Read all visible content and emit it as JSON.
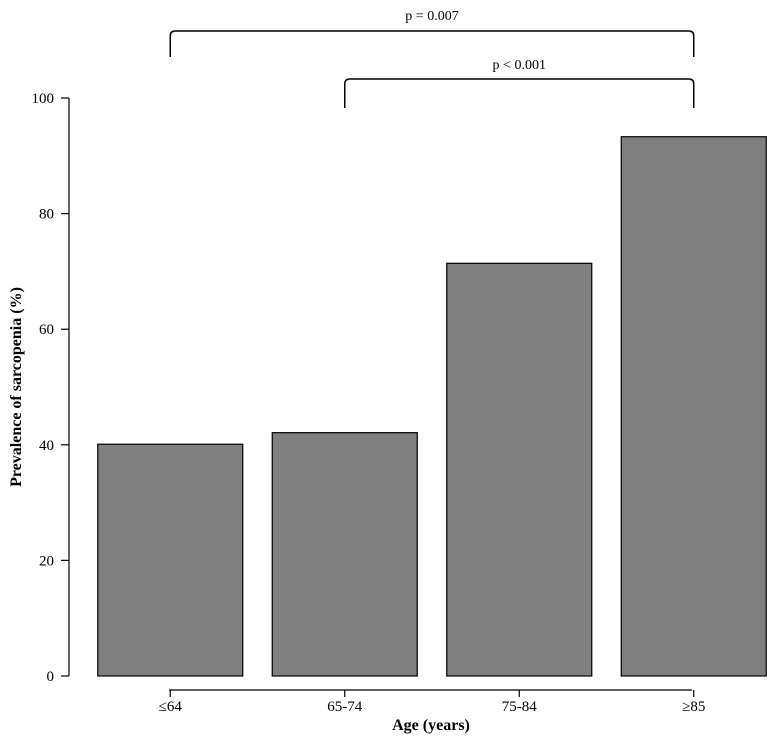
{
  "chart_data": {
    "type": "bar",
    "categories": [
      "≤64",
      "65-74",
      "75-84",
      "≥85"
    ],
    "values": [
      40.1,
      42.1,
      71.4,
      93.3
    ],
    "xlabel": "Age (years)",
    "ylabel": "Prevalence of sarcopenia (%)",
    "ylim": [
      0,
      100
    ],
    "yticks": [
      0,
      20,
      40,
      60,
      80,
      100
    ],
    "grid": false,
    "bar_color": "#808080",
    "annotations": [
      {
        "type": "significance-bracket",
        "from": "≤64",
        "to": "≥85",
        "label": "p = 0.007"
      },
      {
        "type": "significance-bracket",
        "from": "65-74",
        "to": "≥85",
        "label": "p < 0.001"
      }
    ]
  }
}
